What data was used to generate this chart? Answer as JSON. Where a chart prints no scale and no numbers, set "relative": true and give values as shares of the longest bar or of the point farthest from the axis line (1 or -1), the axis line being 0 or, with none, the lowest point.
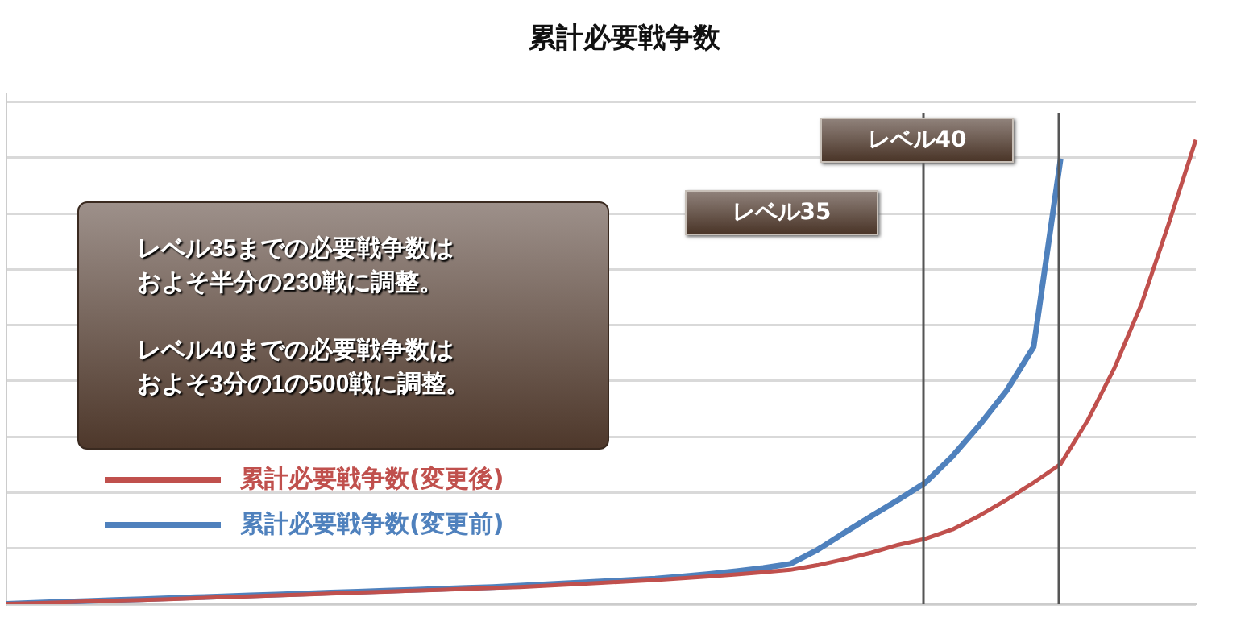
{
  "chart_data": {
    "type": "line",
    "title": "累計必要戦争数",
    "relative": true,
    "categories": [
      null,
      null,
      null,
      null,
      null,
      null,
      null,
      null,
      null,
      null,
      null,
      null,
      null,
      null,
      null,
      null,
      null,
      null,
      null,
      null,
      null,
      null,
      null,
      null,
      null,
      null,
      null,
      null,
      null,
      null,
      null,
      null,
      null,
      null,
      null,
      null,
      null,
      null,
      null,
      null,
      null,
      null,
      null,
      null,
      null
    ],
    "series": [
      {
        "name": "累計必要戦争数(変更後)",
        "color": "#c0504d",
        "values": [
          0.001,
          0.002,
          0.004,
          0.006,
          0.008,
          0.009,
          0.011,
          0.013,
          0.015,
          0.017,
          0.019,
          0.021,
          0.023,
          0.025,
          0.027,
          0.029,
          0.031,
          0.033,
          0.035,
          0.037,
          0.04,
          0.043,
          0.046,
          0.049,
          0.052,
          0.056,
          0.06,
          0.064,
          0.069,
          0.074,
          0.084,
          0.097,
          0.111,
          0.128,
          0.141,
          0.161,
          0.191,
          0.225,
          0.262,
          0.302,
          0.396,
          0.51,
          0.648,
          0.82,
          1.0
        ]
      },
      {
        "name": "累計必要戦争数(変更前)",
        "color": "#4f81bd",
        "values": [
          0.001,
          0.003,
          0.005,
          0.007,
          0.009,
          0.011,
          0.013,
          0.015,
          0.017,
          0.019,
          0.021,
          0.023,
          0.025,
          0.027,
          0.029,
          0.031,
          0.033,
          0.035,
          0.037,
          0.04,
          0.043,
          0.046,
          0.049,
          0.052,
          0.055,
          0.06,
          0.065,
          0.071,
          0.078,
          0.087,
          0.117,
          0.154,
          0.19,
          0.225,
          0.262,
          0.319,
          0.386,
          0.46,
          0.554,
          0.96,
          null,
          null,
          null,
          null,
          null
        ]
      }
    ],
    "annotations": [
      "レベル35までの必要戦争数はおよそ半分の230戦に調整。",
      "レベル40までの必要戦争数はおよそ3分の1の500戦に調整。",
      "レベル35",
      "レベル40"
    ],
    "grid": "y",
    "legend": "left",
    "marker": "none",
    "line_style": "solid"
  }
}
